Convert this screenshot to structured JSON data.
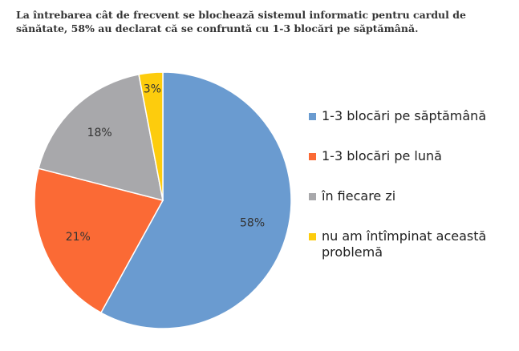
{
  "caption": "La întrebarea cât de frecvent se blochează sistemul informatic pentru cardul de sănătate, 58% au declarat că se confruntă cu 1-3 blocări pe săptămână.",
  "chart_data": {
    "type": "pie",
    "title": "",
    "legend_position": "right",
    "start_angle": "12 o'clock",
    "direction": "clockwise",
    "slices": [
      {
        "label": "1-3 blocări pe săptămână",
        "value": 58,
        "value_label": "58%",
        "color": "#6a9bd0"
      },
      {
        "label": "1-3 blocări pe lună",
        "value": 21,
        "value_label": "21%",
        "color": "#fb6a35"
      },
      {
        "label": "în fiecare zi",
        "value": 18,
        "value_label": "18%",
        "color": "#a8a8ab"
      },
      {
        "label": "nu am întîmpinat această problemă",
        "value": 3,
        "value_label": "3%",
        "color": "#fdcc0d"
      }
    ]
  }
}
